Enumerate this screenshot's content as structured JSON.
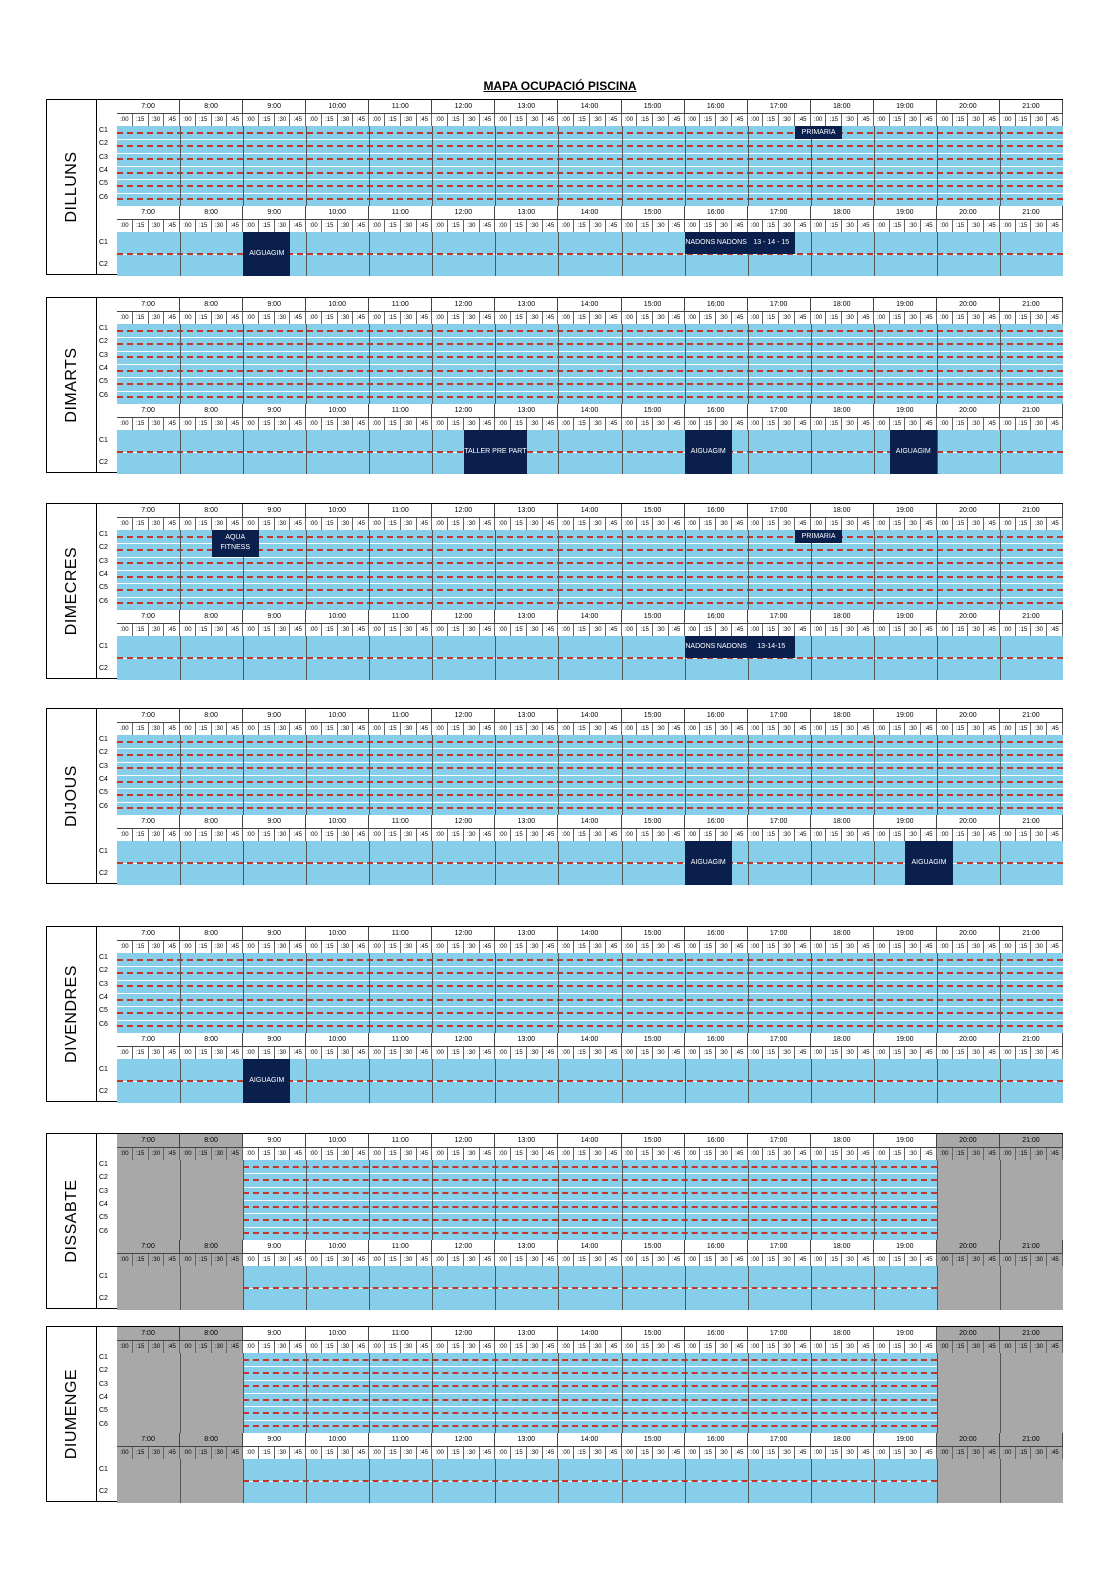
{
  "title": "MAPA OCUPACIÓ PISCINA",
  "hours": [
    "7:00",
    "8:00",
    "9:00",
    "10:00",
    "11:00",
    "12:00",
    "13:00",
    "14:00",
    "15:00",
    "16:00",
    "17:00",
    "18:00",
    "19:00",
    "20:00",
    "21:00"
  ],
  "quarters": [
    ":00",
    ":15",
    ":30",
    ":45"
  ],
  "main_lanes": [
    "C1",
    "C2",
    "C3",
    "C4",
    "C5",
    "C6"
  ],
  "small_lanes": [
    "C1",
    "C2"
  ],
  "days": [
    {
      "name": "DILLUNS",
      "closed": false,
      "main_sessions": [
        {
          "label": "PRIMARIA",
          "start": 43,
          "len": 3,
          "lane": 0,
          "lanes": 1
        }
      ],
      "small_sessions": [
        {
          "label": "AIGUAGIM",
          "start": 8,
          "len": 3,
          "lane": 0,
          "lanes": 2
        },
        {
          "label": "NADONS",
          "start": 36,
          "len": 2,
          "lane": 0,
          "lanes": 1
        },
        {
          "label": "NADONS",
          "start": 38,
          "len": 2,
          "lane": 0,
          "lanes": 1
        },
        {
          "label": "13 - 14 - 15",
          "start": 40,
          "len": 3,
          "lane": 0,
          "lanes": 1
        }
      ]
    },
    {
      "name": "DIMARTS",
      "closed": false,
      "main_sessions": [],
      "small_sessions": [
        {
          "label": "TALLER PRE PART",
          "start": 22,
          "len": 4,
          "lane": 0,
          "lanes": 2
        },
        {
          "label": "AIGUAGIM",
          "start": 36,
          "len": 3,
          "lane": 0,
          "lanes": 2
        },
        {
          "label": "AIGUAGIM",
          "start": 49,
          "len": 3,
          "lane": 0,
          "lanes": 2
        }
      ]
    },
    {
      "name": "DIMECRES",
      "closed": false,
      "main_sessions": [
        {
          "label": "AQUA FITNESS",
          "start": 6,
          "len": 3,
          "lane": 0,
          "lanes": 2
        },
        {
          "label": "PRIMARIA",
          "start": 43,
          "len": 3,
          "lane": 0,
          "lanes": 1
        }
      ],
      "small_sessions": [
        {
          "label": "NADONS",
          "start": 36,
          "len": 2,
          "lane": 0,
          "lanes": 1
        },
        {
          "label": "NADONS",
          "start": 38,
          "len": 2,
          "lane": 0,
          "lanes": 1
        },
        {
          "label": "13-14-15",
          "start": 40,
          "len": 3,
          "lane": 0,
          "lanes": 1
        }
      ]
    },
    {
      "name": "DIJOUS",
      "closed": false,
      "main_sessions": [],
      "small_sessions": [
        {
          "label": "AIGUAGIM",
          "start": 36,
          "len": 3,
          "lane": 0,
          "lanes": 2
        },
        {
          "label": "AIGUAGIM",
          "start": 50,
          "len": 3,
          "lane": 0,
          "lanes": 2
        }
      ]
    },
    {
      "name": "DIVENDRES",
      "closed": false,
      "main_sessions": [],
      "small_sessions": [
        {
          "label": "AIGUAGIM",
          "start": 8,
          "len": 3,
          "lane": 0,
          "lanes": 2
        }
      ]
    },
    {
      "name": "DISSABTE",
      "closed": true,
      "main_sessions": [],
      "small_sessions": []
    },
    {
      "name": "DIUMENGE",
      "closed": true,
      "main_sessions": [],
      "small_sessions": []
    }
  ]
}
